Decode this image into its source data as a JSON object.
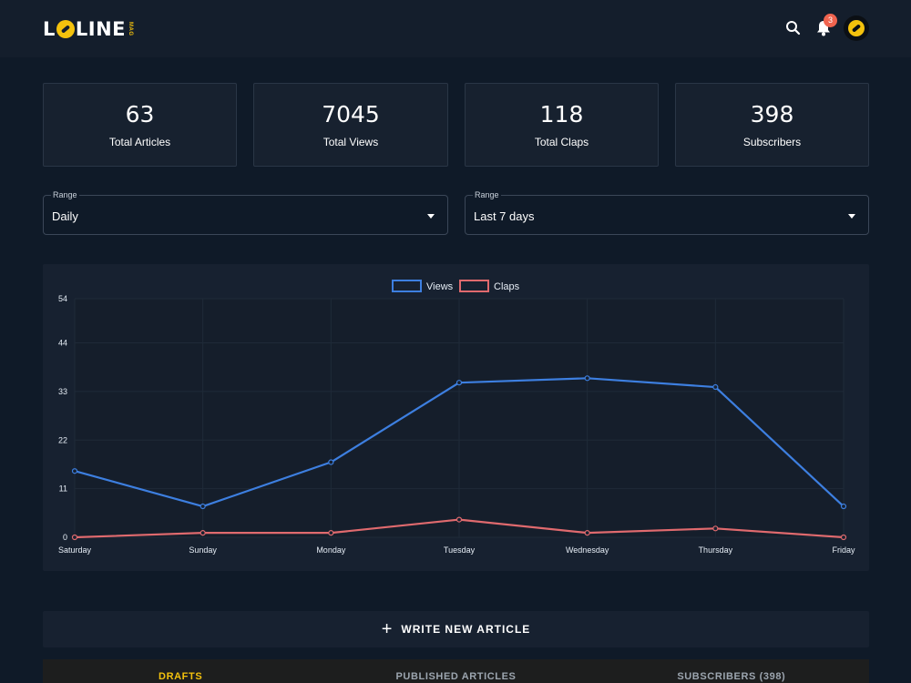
{
  "header": {
    "logo_text_left": "L",
    "logo_text_right": "LINE",
    "logo_mag": "MAG",
    "notification_count": "3"
  },
  "stats": [
    {
      "value": "63",
      "label": "Total Articles"
    },
    {
      "value": "7045",
      "label": "Total Views"
    },
    {
      "value": "118",
      "label": "Total Claps"
    },
    {
      "value": "398",
      "label": "Subscribers"
    }
  ],
  "filters": {
    "granularity": {
      "legend": "Range",
      "value": "Daily"
    },
    "period": {
      "legend": "Range",
      "value": "Last 7 days"
    }
  },
  "chart_data": {
    "type": "line",
    "categories": [
      "Saturday",
      "Sunday",
      "Monday",
      "Tuesday",
      "Wednesday",
      "Thursday",
      "Friday"
    ],
    "series": [
      {
        "name": "Views",
        "color": "#3d7fe0",
        "values": [
          15,
          7,
          17,
          35,
          36,
          34,
          7
        ]
      },
      {
        "name": "Claps",
        "color": "#e06a6e",
        "values": [
          0,
          1,
          1,
          4,
          1,
          2,
          0
        ]
      }
    ],
    "yticks": [
      0,
      11,
      22,
      33,
      44,
      54
    ],
    "ylim": [
      0,
      54
    ],
    "legend": "top-center",
    "grid": true
  },
  "actions": {
    "write_plus": "+",
    "write_label": "WRITE NEW ARTICLE"
  },
  "tabs": [
    {
      "label": "DRAFTS",
      "active": true
    },
    {
      "label": "PUBLISHED ARTICLES",
      "active": false
    },
    {
      "label": "SUBSCRIBERS (398)",
      "active": false
    }
  ]
}
